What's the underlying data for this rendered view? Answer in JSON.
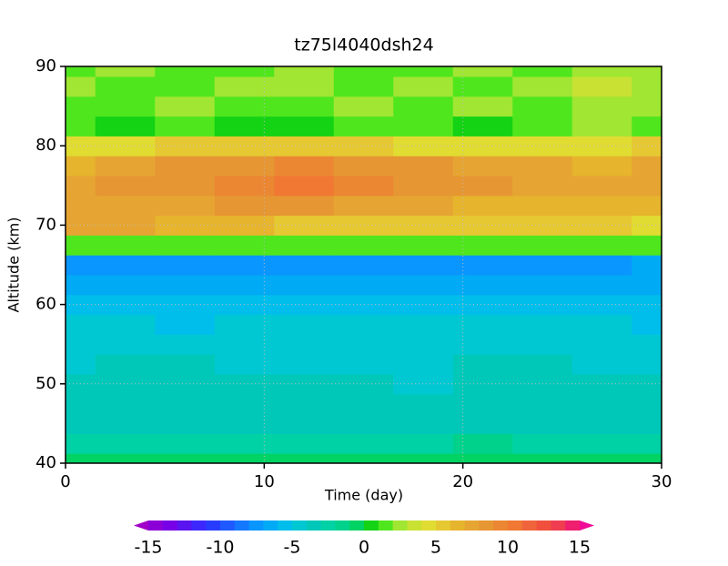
{
  "chart_data": {
    "type": "contour",
    "title": "tz75l4040dsh24",
    "x_label": "Time (day)",
    "y_label": "Altitude (km)",
    "x": [
      0,
      3,
      6,
      9,
      12,
      15,
      18,
      21,
      24,
      27,
      30
    ],
    "y": [
      40,
      42.5,
      45,
      47.5,
      50,
      52.5,
      55,
      57.5,
      60,
      62.5,
      65,
      67.5,
      70,
      72.5,
      75,
      77.5,
      80,
      82.5,
      85,
      87.5,
      90
    ],
    "z": [
      [
        -1,
        -1,
        -1,
        -1,
        -1,
        -1,
        -1,
        -1,
        -1,
        -1,
        -1
      ],
      [
        -3,
        -3,
        -3,
        -3,
        -3,
        -3,
        -3,
        -2,
        -3,
        -3,
        -3
      ],
      [
        -4,
        -4,
        -4,
        -4,
        -4,
        -4,
        -4,
        -4,
        -4,
        -4,
        -4
      ],
      [
        -4,
        -4,
        -4,
        -4,
        -4,
        -4,
        -4,
        -4,
        -4,
        -4,
        -4
      ],
      [
        -4,
        -4,
        -4,
        -4,
        -4,
        -4,
        -5,
        -4,
        -4,
        -4,
        -4
      ],
      [
        -5,
        -4,
        -4,
        -5,
        -5,
        -5,
        -5,
        -4,
        -4,
        -5,
        -5
      ],
      [
        -5,
        -5,
        -5,
        -5,
        -5,
        -5,
        -5,
        -5,
        -5,
        -5,
        -5
      ],
      [
        -5,
        -5,
        -6,
        -5,
        -5,
        -5,
        -5,
        -5,
        -5,
        -5,
        -6
      ],
      [
        -6,
        -6,
        -6,
        -6,
        -6,
        -6,
        -6,
        -6,
        -6,
        -6,
        -6
      ],
      [
        -7,
        -7,
        -7,
        -7,
        -7,
        -7,
        -7,
        -7,
        -7,
        -7,
        -7
      ],
      [
        -8,
        -8,
        -8,
        -8,
        -8,
        -8,
        -8,
        -8,
        -8,
        -8,
        -7
      ],
      [
        1,
        1,
        1,
        1,
        1,
        1,
        1,
        1,
        1,
        1,
        1
      ],
      [
        7,
        7,
        6,
        6,
        5,
        5,
        5,
        5,
        5,
        5,
        4
      ],
      [
        7,
        7,
        7,
        8,
        8,
        7,
        7,
        6,
        6,
        6,
        6
      ],
      [
        7,
        8,
        8,
        9,
        10,
        9,
        8,
        8,
        7,
        7,
        7
      ],
      [
        6,
        7,
        8,
        8,
        9,
        8,
        8,
        7,
        7,
        6,
        7
      ],
      [
        4,
        4,
        5,
        5,
        5,
        5,
        4,
        4,
        4,
        4,
        5
      ],
      [
        1,
        0,
        1,
        0,
        0,
        1,
        1,
        0,
        1,
        2,
        1
      ],
      [
        1,
        1,
        2,
        1,
        1,
        2,
        1,
        2,
        1,
        2,
        2
      ],
      [
        2,
        1,
        1,
        2,
        2,
        1,
        2,
        1,
        2,
        3,
        2
      ],
      [
        1,
        2,
        1,
        1,
        2,
        1,
        1,
        2,
        1,
        2,
        2
      ]
    ],
    "xlim": [
      0,
      30
    ],
    "ylim": [
      40,
      90
    ],
    "xticks": [
      0,
      10,
      20,
      30
    ],
    "yticks": [
      40,
      50,
      60,
      70,
      80,
      90
    ],
    "grid": true,
    "colorbar": {
      "levels": [
        -15,
        -14,
        -13,
        -12,
        -11,
        -10,
        -9,
        -8,
        -7,
        -6,
        -5,
        -4,
        -3,
        -2,
        -1,
        0,
        1,
        2,
        3,
        4,
        5,
        6,
        7,
        8,
        9,
        10,
        11,
        12,
        13,
        14,
        15
      ],
      "ticks": [
        -15,
        -10,
        -5,
        0,
        5,
        10,
        15
      ],
      "colors": [
        "#a000c8",
        "#8c00d8",
        "#7800e6",
        "#5a14f0",
        "#3c28ff",
        "#283cff",
        "#1e5aff",
        "#1478ff",
        "#0a96ff",
        "#00aaf5",
        "#00beeb",
        "#00c8d2",
        "#00c8b9",
        "#00d2a5",
        "#00d28c",
        "#00d264",
        "#14d214",
        "#50e61e",
        "#a0e632",
        "#c8e132",
        "#e1dc32",
        "#e6c832",
        "#e6b42d",
        "#e6a532",
        "#e69632",
        "#eb8732",
        "#f07832",
        "#f0643c",
        "#f0503c",
        "#f03c50",
        "#f01e6e",
        "#f00a96"
      ]
    }
  }
}
